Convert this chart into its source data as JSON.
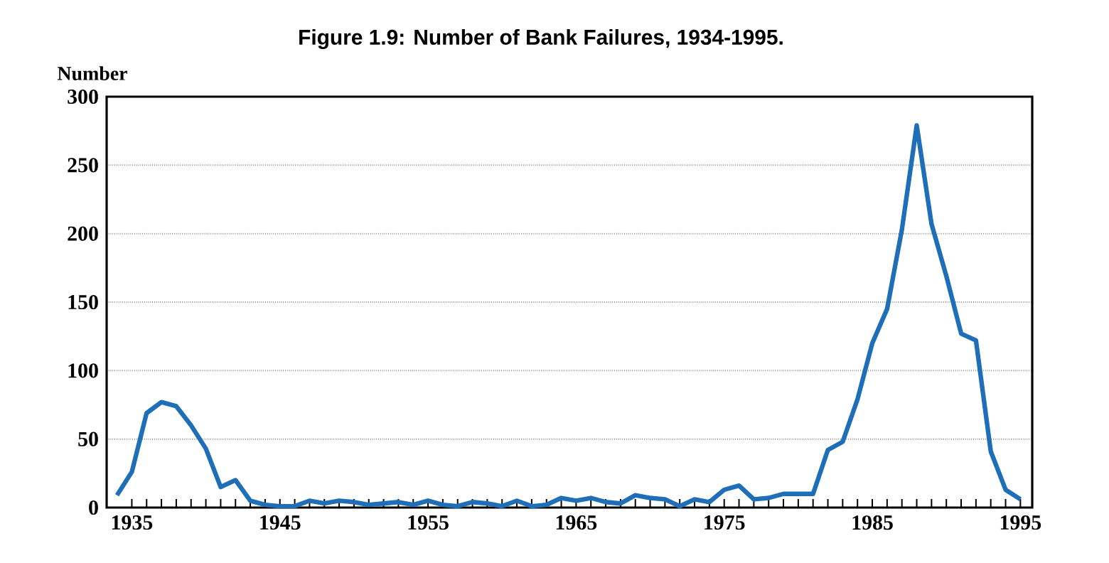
{
  "chart_data": {
    "type": "line",
    "title": "Figure 1.9: Number of Bank Failures, 1934-1995.",
    "ylabel": "Number",
    "x": [
      1934,
      1935,
      1936,
      1937,
      1938,
      1939,
      1940,
      1941,
      1942,
      1943,
      1944,
      1945,
      1946,
      1947,
      1948,
      1949,
      1950,
      1951,
      1952,
      1953,
      1954,
      1955,
      1956,
      1957,
      1958,
      1959,
      1960,
      1961,
      1962,
      1963,
      1964,
      1965,
      1966,
      1967,
      1968,
      1969,
      1970,
      1971,
      1972,
      1973,
      1974,
      1975,
      1976,
      1977,
      1978,
      1979,
      1980,
      1981,
      1982,
      1983,
      1984,
      1985,
      1986,
      1987,
      1988,
      1989,
      1990,
      1991,
      1992,
      1993,
      1994,
      1995
    ],
    "series": [
      {
        "color": "#1f6fb8",
        "values": [
          9,
          26,
          69,
          77,
          74,
          60,
          43,
          15,
          20,
          5,
          2,
          1,
          1,
          5,
          3,
          5,
          4,
          2,
          3,
          4,
          2,
          5,
          2,
          1,
          4,
          3,
          1,
          5,
          1,
          2,
          7,
          5,
          7,
          4,
          3,
          9,
          7,
          6,
          1,
          6,
          4,
          13,
          16,
          6,
          7,
          10,
          10,
          10,
          42,
          48,
          79,
          120,
          145,
          203,
          279,
          207,
          169,
          127,
          122,
          41,
          13,
          6
        ]
      }
    ],
    "xlim": [
      1933.3,
      1995.8
    ],
    "ylim": [
      0,
      300
    ],
    "xticks": [
      1935,
      1945,
      1955,
      1965,
      1975,
      1985,
      1995
    ],
    "yticks": [
      0,
      50,
      100,
      150,
      200,
      250,
      300
    ],
    "grid": "y",
    "marker": "none",
    "line_style": "solid"
  }
}
